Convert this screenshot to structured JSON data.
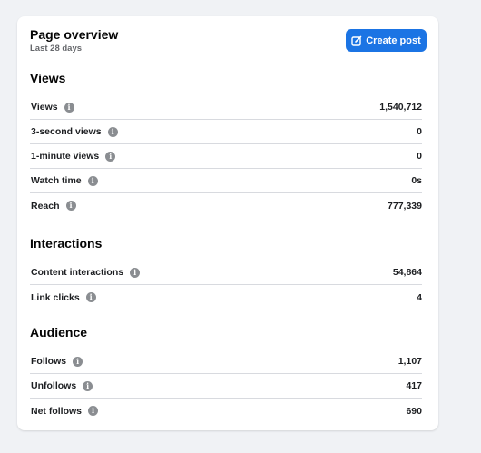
{
  "header": {
    "title": "Page overview",
    "subtitle": "Last 28 days",
    "create_post_label": "Create post"
  },
  "sections": [
    {
      "title": "Views",
      "rows": [
        {
          "label": "Views",
          "value": "1,540,712"
        },
        {
          "label": "3-second views",
          "value": "0"
        },
        {
          "label": "1-minute views",
          "value": "0"
        },
        {
          "label": "Watch time",
          "value": "0s"
        },
        {
          "label": "Reach",
          "value": "777,339"
        }
      ]
    },
    {
      "title": "Interactions",
      "rows": [
        {
          "label": "Content interactions",
          "value": "54,864"
        },
        {
          "label": "Link clicks",
          "value": "4"
        }
      ]
    },
    {
      "title": "Audience",
      "rows": [
        {
          "label": "Follows",
          "value": "1,107"
        },
        {
          "label": "Unfollows",
          "value": "417"
        },
        {
          "label": "Net follows",
          "value": "690"
        }
      ]
    }
  ],
  "icons": {
    "info": "i",
    "create_post": "edit-icon"
  },
  "colors": {
    "accent": "#1b74e4",
    "background": "#f0f2f5",
    "info_icon": "#8a8d91"
  }
}
